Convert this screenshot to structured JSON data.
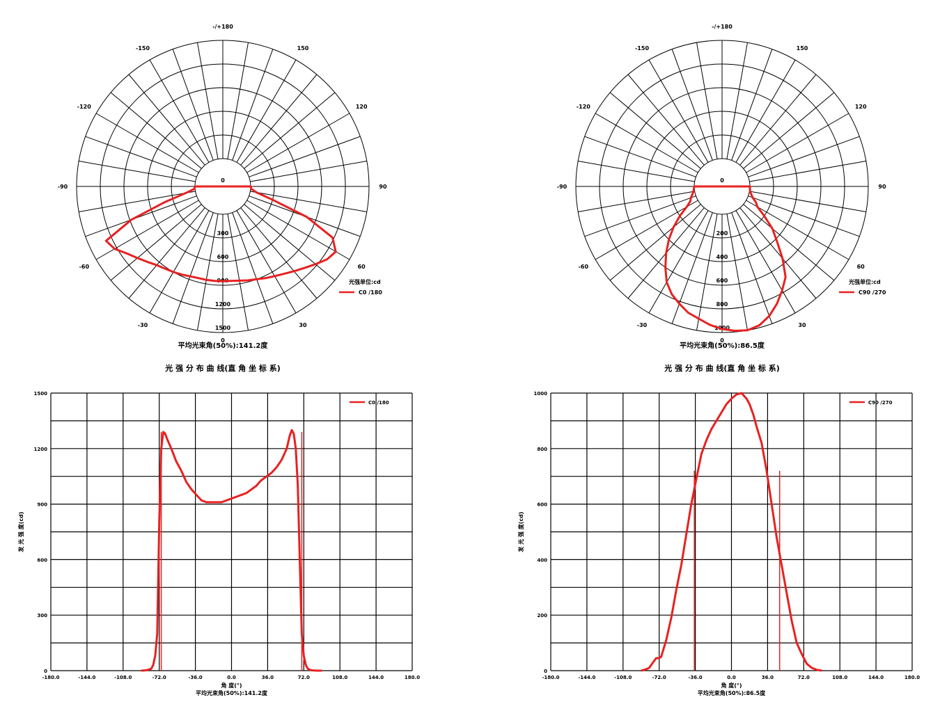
{
  "colors": {
    "curve": "#e82020",
    "grid": "#000000",
    "background": "#ffffff"
  },
  "polar_charts": [
    {
      "angle_labels": [
        {
          "angle": 0,
          "text": "-/+180"
        },
        {
          "angle": 30,
          "text": "150"
        },
        {
          "angle": -30,
          "text": "-150"
        },
        {
          "angle": 60,
          "text": "120"
        },
        {
          "angle": -60,
          "text": "-120"
        },
        {
          "angle": 90,
          "text": "90"
        },
        {
          "angle": -90,
          "text": "-90"
        },
        {
          "angle": 120,
          "text": "60"
        },
        {
          "angle": -120,
          "text": "-60"
        },
        {
          "angle": 150,
          "text": "30"
        },
        {
          "angle": -150,
          "text": "-30"
        },
        {
          "angle": 180,
          "text": "0"
        }
      ],
      "ring_labels": [
        {
          "r": 0,
          "text": "0"
        },
        {
          "r": 300,
          "text": "300"
        },
        {
          "r": 600,
          "text": "600"
        },
        {
          "r": 900,
          "text": "900"
        },
        {
          "r": 1200,
          "text": "1200"
        },
        {
          "r": 1500,
          "text": "1500"
        }
      ],
      "legend_title": "光强单位:cd",
      "legend_entry": "C0  /180",
      "footer": "平均光束角(50%):141.2度",
      "section_title": "光 强 分 布 曲 线(直 角 坐 标 系)"
    },
    {
      "angle_labels": [
        {
          "angle": 0,
          "text": "-/+180"
        },
        {
          "angle": 30,
          "text": "150"
        },
        {
          "angle": -30,
          "text": "-150"
        },
        {
          "angle": 60,
          "text": "120"
        },
        {
          "angle": -60,
          "text": "-120"
        },
        {
          "angle": 90,
          "text": "90"
        },
        {
          "angle": -90,
          "text": "-90"
        },
        {
          "angle": 120,
          "text": "60"
        },
        {
          "angle": -120,
          "text": "-60"
        },
        {
          "angle": 150,
          "text": "30"
        },
        {
          "angle": -150,
          "text": "-30"
        },
        {
          "angle": 180,
          "text": "0"
        }
      ],
      "ring_labels": [
        {
          "r": 0,
          "text": "0"
        },
        {
          "r": 200,
          "text": "200"
        },
        {
          "r": 400,
          "text": "400"
        },
        {
          "r": 600,
          "text": "600"
        },
        {
          "r": 800,
          "text": "800"
        },
        {
          "r": 1000,
          "text": "1000"
        }
      ],
      "legend_title": "光强单位:cd",
      "legend_entry": "C90 /270",
      "footer": "平均光束角(50%):86.5度",
      "section_title": "光 强 分 布 曲 线(直 角 坐 标 系)"
    }
  ],
  "cartesian_charts": [
    {
      "y_tick_labels": [
        "0",
        "300",
        "600",
        "900",
        "1200",
        "1500"
      ],
      "x_tick_labels": [
        "-180.0",
        "-144.0",
        "-108.0",
        "-72.0",
        "-36.0",
        "0.0",
        "36.0",
        "72.0",
        "108.0",
        "144.0",
        "180.0"
      ],
      "ylabel": "发 光 强 度(cd)",
      "xlabel": "角 度(°)",
      "footer": "平均光束角(50%):141.2度",
      "legend_entry": "C0  /180"
    },
    {
      "y_tick_labels": [
        "0",
        "200",
        "400",
        "600",
        "800",
        "1000"
      ],
      "x_tick_labels": [
        "-180.0",
        "-144.0",
        "-108.0",
        "-72.0",
        "-36.0",
        "0.0",
        "36.0",
        "72.0",
        "108.0",
        "144.0",
        "180.0"
      ],
      "ylabel": "发 光 强 度(cd)",
      "xlabel": "角 度(°)",
      "footer": "平均光束角(50%):86.5度",
      "legend_entry": "C90 /270"
    }
  ],
  "chart_data": [
    {
      "type": "polar",
      "title": "",
      "series": [
        {
          "name": "C0  /180",
          "angles": [
            -90,
            -85,
            -80,
            -75,
            -70,
            -65,
            -60,
            -55,
            -50,
            -45,
            -40,
            -35,
            -30,
            -25,
            -20,
            -15,
            -10,
            -5,
            0,
            5,
            10,
            15,
            20,
            25,
            30,
            35,
            40,
            45,
            50,
            55,
            60,
            65,
            70,
            75,
            80,
            85,
            90
          ],
          "values": [
            0,
            10,
            120,
            400,
            880,
            1280,
            1230,
            1130,
            1060,
            1000,
            950,
            920,
            900,
            880,
            860,
            850,
            850,
            850,
            850,
            850,
            860,
            880,
            900,
            930,
            960,
            1000,
            1050,
            1110,
            1180,
            1260,
            1300,
            1180,
            780,
            300,
            80,
            10,
            0
          ]
        }
      ],
      "rlim": [
        0,
        1500
      ],
      "ring_step": 300
    },
    {
      "type": "polar",
      "title": "",
      "series": [
        {
          "name": "C90 /270",
          "angles": [
            -90,
            -80,
            -75,
            -70,
            -65,
            -60,
            -55,
            -50,
            -45,
            -40,
            -35,
            -30,
            -25,
            -20,
            -15,
            -10,
            -5,
            0,
            5,
            10,
            15,
            20,
            25,
            30,
            35,
            40,
            45,
            50,
            55,
            60,
            65,
            70,
            75,
            80,
            90
          ],
          "values": [
            0,
            10,
            25,
            45,
            60,
            110,
            200,
            300,
            400,
            500,
            600,
            700,
            770,
            820,
            870,
            900,
            940,
            970,
            990,
            1000,
            980,
            930,
            860,
            780,
            700,
            560,
            420,
            320,
            200,
            110,
            80,
            40,
            20,
            5,
            0
          ],
          "note_angles_deg": "measured from nadir"
        }
      ],
      "rlim": [
        0,
        1000
      ],
      "ring_step": 200
    },
    {
      "type": "line",
      "title": "",
      "xlabel": "角 度(°)",
      "ylabel": "发 光 强 度(cd)",
      "xlim": [
        -180,
        180
      ],
      "ylim": [
        0,
        1500
      ],
      "series": [
        {
          "name": "C0  /180",
          "x": [
            -90,
            -85,
            -80,
            -78,
            -76,
            -74,
            -72,
            -70,
            -68,
            -66,
            -64,
            -60,
            -55,
            -50,
            -45,
            -40,
            -35,
            -30,
            -25,
            -20,
            -15,
            -10,
            -5,
            0,
            5,
            10,
            15,
            20,
            25,
            28,
            30,
            35,
            40,
            45,
            50,
            55,
            58,
            60,
            62,
            64,
            66,
            68,
            70,
            72,
            74,
            76,
            78,
            80,
            85,
            90
          ],
          "y": [
            0,
            2,
            10,
            30,
            80,
            200,
            800,
            1200,
            1290,
            1280,
            1250,
            1200,
            1130,
            1080,
            1020,
            980,
            950,
            920,
            910,
            910,
            910,
            910,
            920,
            930,
            940,
            950,
            960,
            980,
            1000,
            1020,
            1030,
            1050,
            1070,
            1100,
            1140,
            1200,
            1270,
            1300,
            1280,
            1200,
            1000,
            600,
            200,
            80,
            30,
            10,
            5,
            2,
            0,
            0
          ]
        }
      ],
      "verticals": [
        -70,
        70
      ]
    },
    {
      "type": "line",
      "title": "",
      "xlabel": "角 度(°)",
      "ylabel": "发 光 强 度(cd)",
      "xlim": [
        -180,
        180
      ],
      "ylim": [
        0,
        1000
      ],
      "series": [
        {
          "name": "C90 /270",
          "x": [
            -90,
            -87,
            -85,
            -82,
            -80,
            -78,
            -75,
            -72,
            -70,
            -65,
            -60,
            -55,
            -50,
            -45,
            -40,
            -35,
            -30,
            -25,
            -20,
            -15,
            -10,
            -5,
            0,
            5,
            10,
            15,
            18,
            20,
            22,
            25,
            30,
            35,
            40,
            45,
            50,
            55,
            60,
            65,
            70,
            75,
            80,
            85,
            90
          ],
          "y": [
            0,
            3,
            5,
            10,
            20,
            30,
            45,
            45,
            50,
            110,
            190,
            290,
            380,
            490,
            600,
            690,
            780,
            830,
            870,
            900,
            930,
            960,
            980,
            995,
            1000,
            980,
            960,
            940,
            920,
            880,
            820,
            720,
            600,
            480,
            380,
            280,
            180,
            100,
            60,
            25,
            10,
            3,
            0
          ],
          "x_as_drawn": true
        }
      ],
      "verticals": [
        -37,
        48
      ]
    }
  ]
}
